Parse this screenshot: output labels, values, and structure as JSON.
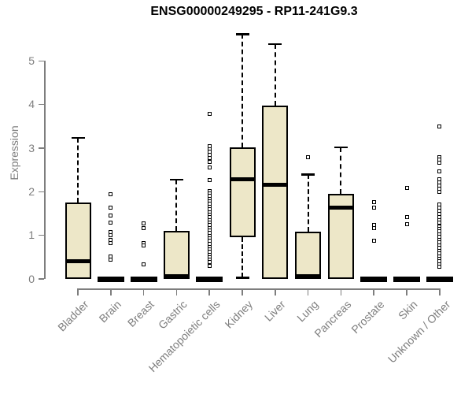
{
  "style": {
    "background": "#FFFFFF",
    "box_fill": "#EDE7C8",
    "box_border": "#000000",
    "axis_color": "#7E7E7E",
    "title_color": "#000000"
  },
  "chart_data": {
    "type": "boxplot",
    "title": "ENSG00000249295 - RP11-241G9.3",
    "xlabel": "",
    "ylabel": "Expression",
    "ylim": [
      0,
      5.7
    ],
    "yticks": [
      0,
      1,
      2,
      3,
      4,
      5
    ],
    "grid": false,
    "categories": [
      "Bladder",
      "Brain",
      "Breast",
      "Gastric",
      "Hematopoietic cells",
      "Kidney",
      "Liver",
      "Lung",
      "Pancreas",
      "Prostate",
      "Skin",
      "Unknown / Other"
    ],
    "boxes": [
      {
        "category": "Bladder",
        "q1": 0,
        "median": 0.4,
        "q3": 1.75,
        "whisker_low": null,
        "whisker_high": 3.24,
        "outliers": []
      },
      {
        "category": "Brain",
        "q1": 0,
        "median": 0,
        "q3": 0,
        "whisker_low": null,
        "whisker_high": null,
        "outliers": [
          1.95,
          1.64,
          1.45,
          1.3,
          1.08,
          1.01,
          0.9,
          0.83,
          0.52,
          0.45
        ]
      },
      {
        "category": "Breast",
        "q1": 0,
        "median": 0,
        "q3": 0,
        "whisker_low": null,
        "whisker_high": null,
        "outliers": [
          1.27,
          1.17,
          0.83,
          0.76,
          0.34
        ]
      },
      {
        "category": "Gastric",
        "q1": 0,
        "median": 0.03,
        "q3": 1.1,
        "whisker_low": null,
        "whisker_high": 2.28,
        "outliers": []
      },
      {
        "category": "Hematopoietic cells",
        "q1": 0,
        "median": 0,
        "q3": 0,
        "whisker_low": null,
        "whisker_high": null,
        "outliers": [
          3.78,
          3.05,
          2.98,
          2.91,
          2.84,
          2.77,
          2.69,
          2.55,
          2.26,
          2.02,
          1.96,
          1.9,
          1.84,
          1.78,
          1.72,
          1.66,
          1.6,
          1.53,
          1.47,
          1.41,
          1.35,
          1.29,
          1.23,
          1.17,
          1.11,
          1.05,
          0.99,
          0.93,
          0.87,
          0.8,
          0.74,
          0.68,
          0.62,
          0.56,
          0.5,
          0.44,
          0.38,
          0.32,
          0.29
        ]
      },
      {
        "category": "Kidney",
        "q1": 0.96,
        "median": 2.28,
        "q3": 3.01,
        "whisker_low": 0.03,
        "whisker_high": 5.62,
        "outliers": []
      },
      {
        "category": "Liver",
        "q1": 0,
        "median": 2.16,
        "q3": 3.98,
        "whisker_low": null,
        "whisker_high": 5.39,
        "outliers": []
      },
      {
        "category": "Lung",
        "q1": 0,
        "median": 0.03,
        "q3": 1.08,
        "whisker_low": null,
        "whisker_high": 2.4,
        "outliers": [
          2.8
        ]
      },
      {
        "category": "Pancreas",
        "q1": 0,
        "median": 1.64,
        "q3": 1.96,
        "whisker_low": null,
        "whisker_high": 3.02,
        "outliers": []
      },
      {
        "category": "Prostate",
        "q1": 0,
        "median": 0,
        "q3": 0,
        "whisker_low": null,
        "whisker_high": null,
        "outliers": [
          1.77,
          1.64,
          1.23,
          1.16,
          0.87
        ]
      },
      {
        "category": "Skin",
        "q1": 0,
        "median": 0,
        "q3": 0,
        "whisker_low": null,
        "whisker_high": null,
        "outliers": [
          2.08,
          1.41,
          1.25
        ]
      },
      {
        "category": "Unknown / Other",
        "q1": 0,
        "median": 0,
        "q3": 0,
        "whisker_low": null,
        "whisker_high": null,
        "outliers": [
          3.5,
          2.8,
          2.73,
          2.66,
          2.46,
          2.28,
          2.21,
          2.14,
          2.07,
          1.99,
          1.7,
          1.63,
          1.56,
          1.49,
          1.42,
          1.35,
          1.3,
          1.21,
          1.15,
          1.09,
          1.02,
          0.96,
          0.9,
          0.84,
          0.77,
          0.71,
          0.65,
          0.58,
          0.52,
          0.46,
          0.4,
          0.34,
          0.28
        ]
      }
    ]
  }
}
